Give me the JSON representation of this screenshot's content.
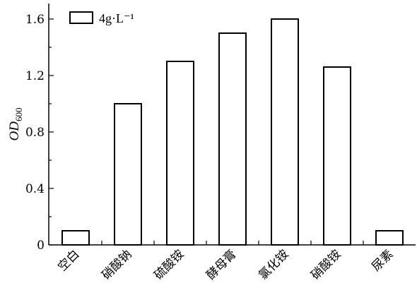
{
  "chart_data": {
    "type": "bar",
    "categories": [
      "空白",
      "硝酸钠",
      "硫酸铵",
      "酵母膏",
      "氯化铵",
      "硝酸铵",
      "尿素"
    ],
    "series": [
      {
        "name": "4g·L⁻¹",
        "values": [
          0.1,
          1.0,
          1.3,
          1.5,
          1.6,
          1.26,
          0.1
        ]
      }
    ],
    "ylabel": {
      "main": "OD",
      "sub": "600"
    },
    "xlabel": "",
    "ylim": [
      0,
      1.7
    ],
    "yticks": [
      0,
      0.4,
      0.8,
      1.2,
      1.6
    ],
    "ytick_labels": [
      "0",
      "0.4",
      "0.8",
      "1.2",
      "1.6"
    ],
    "minor_yticks": [
      0.2,
      0.6,
      1.0,
      1.4
    ],
    "legend": {
      "position": "top-left",
      "label": "4g·L⁻¹"
    },
    "grid": false,
    "bar_fill": "#ffffff",
    "bar_edge": "#000000"
  }
}
